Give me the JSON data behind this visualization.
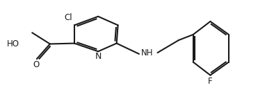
{
  "bond_color": "#1a1a1a",
  "background": "#ffffff",
  "line_width": 1.5,
  "font_size": 8.5,
  "figsize": [
    3.71,
    1.56
  ],
  "dpi": 100,
  "xlim": [
    0,
    10.5
  ],
  "ylim": [
    0,
    4.2
  ]
}
